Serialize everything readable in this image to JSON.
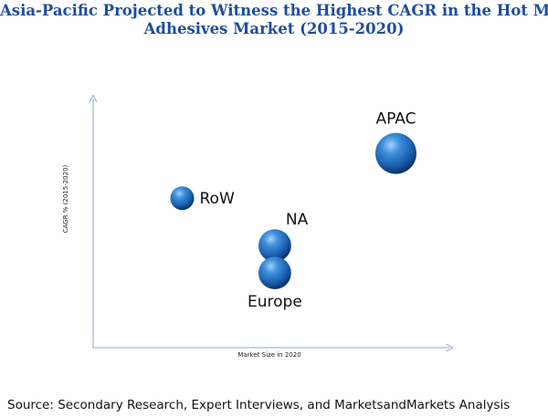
{
  "title": {
    "line1": "Asia-Pacific Projected to Witness the Highest CAGR in the Hot Melt",
    "line2": "Adhesives Market (2015-2020)"
  },
  "source": "Source: Secondary Research, Expert Interviews, and MarketsandMarkets Analysis",
  "colors": {
    "title": "#1f4e9a",
    "axis": "#8fa6cf",
    "bubble": "#1f5fa8"
  },
  "chart_data": {
    "type": "scatter",
    "xlabel": "Market Size in 2020",
    "ylabel": "CAGR % (2015-2020)",
    "xlim": [
      0,
      10
    ],
    "ylim": [
      0,
      10
    ],
    "grid": false,
    "axis_ticks": false,
    "points": [
      {
        "label": "RoW",
        "x": 2.5,
        "y": 6.0,
        "size": 1.0
      },
      {
        "label": "NA",
        "x": 5.1,
        "y": 4.1,
        "size": 1.9
      },
      {
        "label": "Europe",
        "x": 5.1,
        "y": 3.0,
        "size": 1.9
      },
      {
        "label": "APAC",
        "x": 8.5,
        "y": 7.8,
        "size": 3.0
      }
    ]
  }
}
